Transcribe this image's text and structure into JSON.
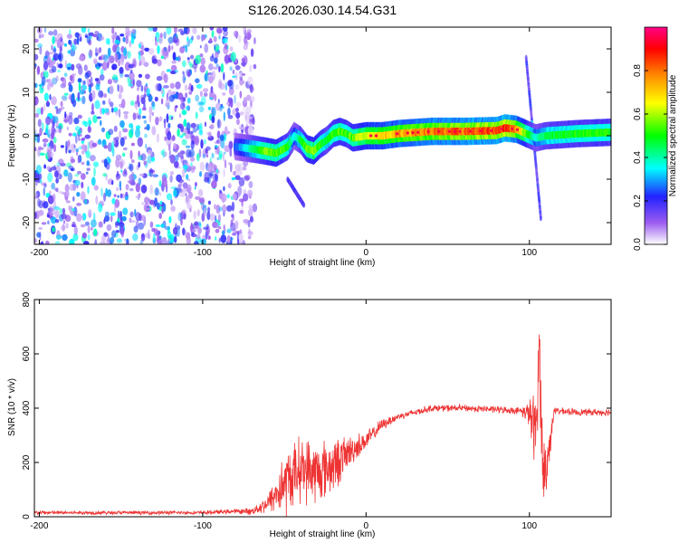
{
  "title": "S126.2026.030.14.54.G31",
  "chart_data": [
    {
      "type": "heatmap",
      "title": "S126.2026.030.14.54.G31",
      "xlabel": "Height of straight line (km)",
      "ylabel": "Frequency (Hz)",
      "xlim": [
        -203,
        150
      ],
      "ylim": [
        -25,
        25
      ],
      "xticks": [
        -200,
        -100,
        0,
        100
      ],
      "yticks": [
        -20,
        -10,
        0,
        10,
        20
      ],
      "colorbar": {
        "label": "Normalized spectral amplitude",
        "range": [
          0,
          1
        ],
        "ticks": [
          "0.0",
          "0.2",
          "0.4",
          "0.6",
          "0.8"
        ],
        "colors": [
          "#ffffff",
          "#9b5cf0",
          "#2222ff",
          "#00ffff",
          "#00ff00",
          "#ffff00",
          "#ff8800",
          "#ff0000",
          "#ff0088"
        ]
      },
      "ridge": {
        "x": [
          -80,
          -70,
          -62,
          -55,
          -48,
          -44,
          -40,
          -36,
          -32,
          -28,
          -24,
          -20,
          -16,
          -12,
          -8,
          0,
          10,
          20,
          40,
          60,
          80,
          85,
          92,
          98,
          104,
          110,
          130,
          150
        ],
        "freq": [
          -2.5,
          -3,
          -3.5,
          -4,
          -2.5,
          0,
          -1,
          -3,
          -3.5,
          -2,
          -1,
          0.5,
          1,
          0.5,
          -0.5,
          0,
          0,
          0.5,
          1,
          1,
          1.2,
          1.8,
          1.5,
          0.5,
          -0.5,
          0,
          0.5,
          0.8
        ],
        "amp": [
          0.25,
          0.45,
          0.6,
          0.6,
          0.55,
          0.35,
          0.5,
          0.6,
          0.65,
          0.55,
          0.5,
          0.55,
          0.6,
          0.55,
          0.6,
          0.7,
          0.75,
          0.8,
          0.85,
          0.88,
          0.9,
          0.95,
          0.85,
          0.6,
          0.4,
          0.5,
          0.55,
          0.55
        ]
      },
      "noise_region": {
        "x_from": -203,
        "x_to": -68,
        "amp_max": 0.35
      },
      "spikes": [
        {
          "x0": 98,
          "f0": 18,
          "x1": 107,
          "f1": -19
        },
        {
          "x0": -48,
          "f0": -10,
          "x1": -38,
          "f1": -16
        }
      ]
    },
    {
      "type": "line",
      "xlabel": "Height of straight line (km)",
      "ylabel": "SNR (10 * v/v)",
      "xlim": [
        -203,
        150
      ],
      "ylim": [
        0,
        800
      ],
      "xticks": [
        -200,
        -100,
        0,
        100
      ],
      "yticks": [
        0,
        200,
        400,
        600,
        800
      ],
      "series": [
        {
          "name": "SNR",
          "color": "#ee3333",
          "x": [
            -203,
            -150,
            -100,
            -80,
            -70,
            -60,
            -50,
            -40,
            -30,
            -20,
            -10,
            0,
            10,
            20,
            30,
            40,
            60,
            80,
            95,
            100,
            104,
            106,
            108,
            110,
            115,
            130,
            150
          ],
          "y": [
            15,
            15,
            15,
            20,
            20,
            50,
            120,
            180,
            160,
            190,
            240,
            280,
            340,
            370,
            385,
            400,
            400,
            395,
            390,
            380,
            300,
            650,
            200,
            150,
            390,
            385,
            385
          ],
          "noise": [
            8,
            8,
            8,
            10,
            15,
            40,
            140,
            140,
            140,
            120,
            70,
            40,
            25,
            15,
            15,
            15,
            15,
            15,
            15,
            60,
            200,
            150,
            200,
            150,
            15,
            15,
            15
          ]
        }
      ]
    }
  ]
}
